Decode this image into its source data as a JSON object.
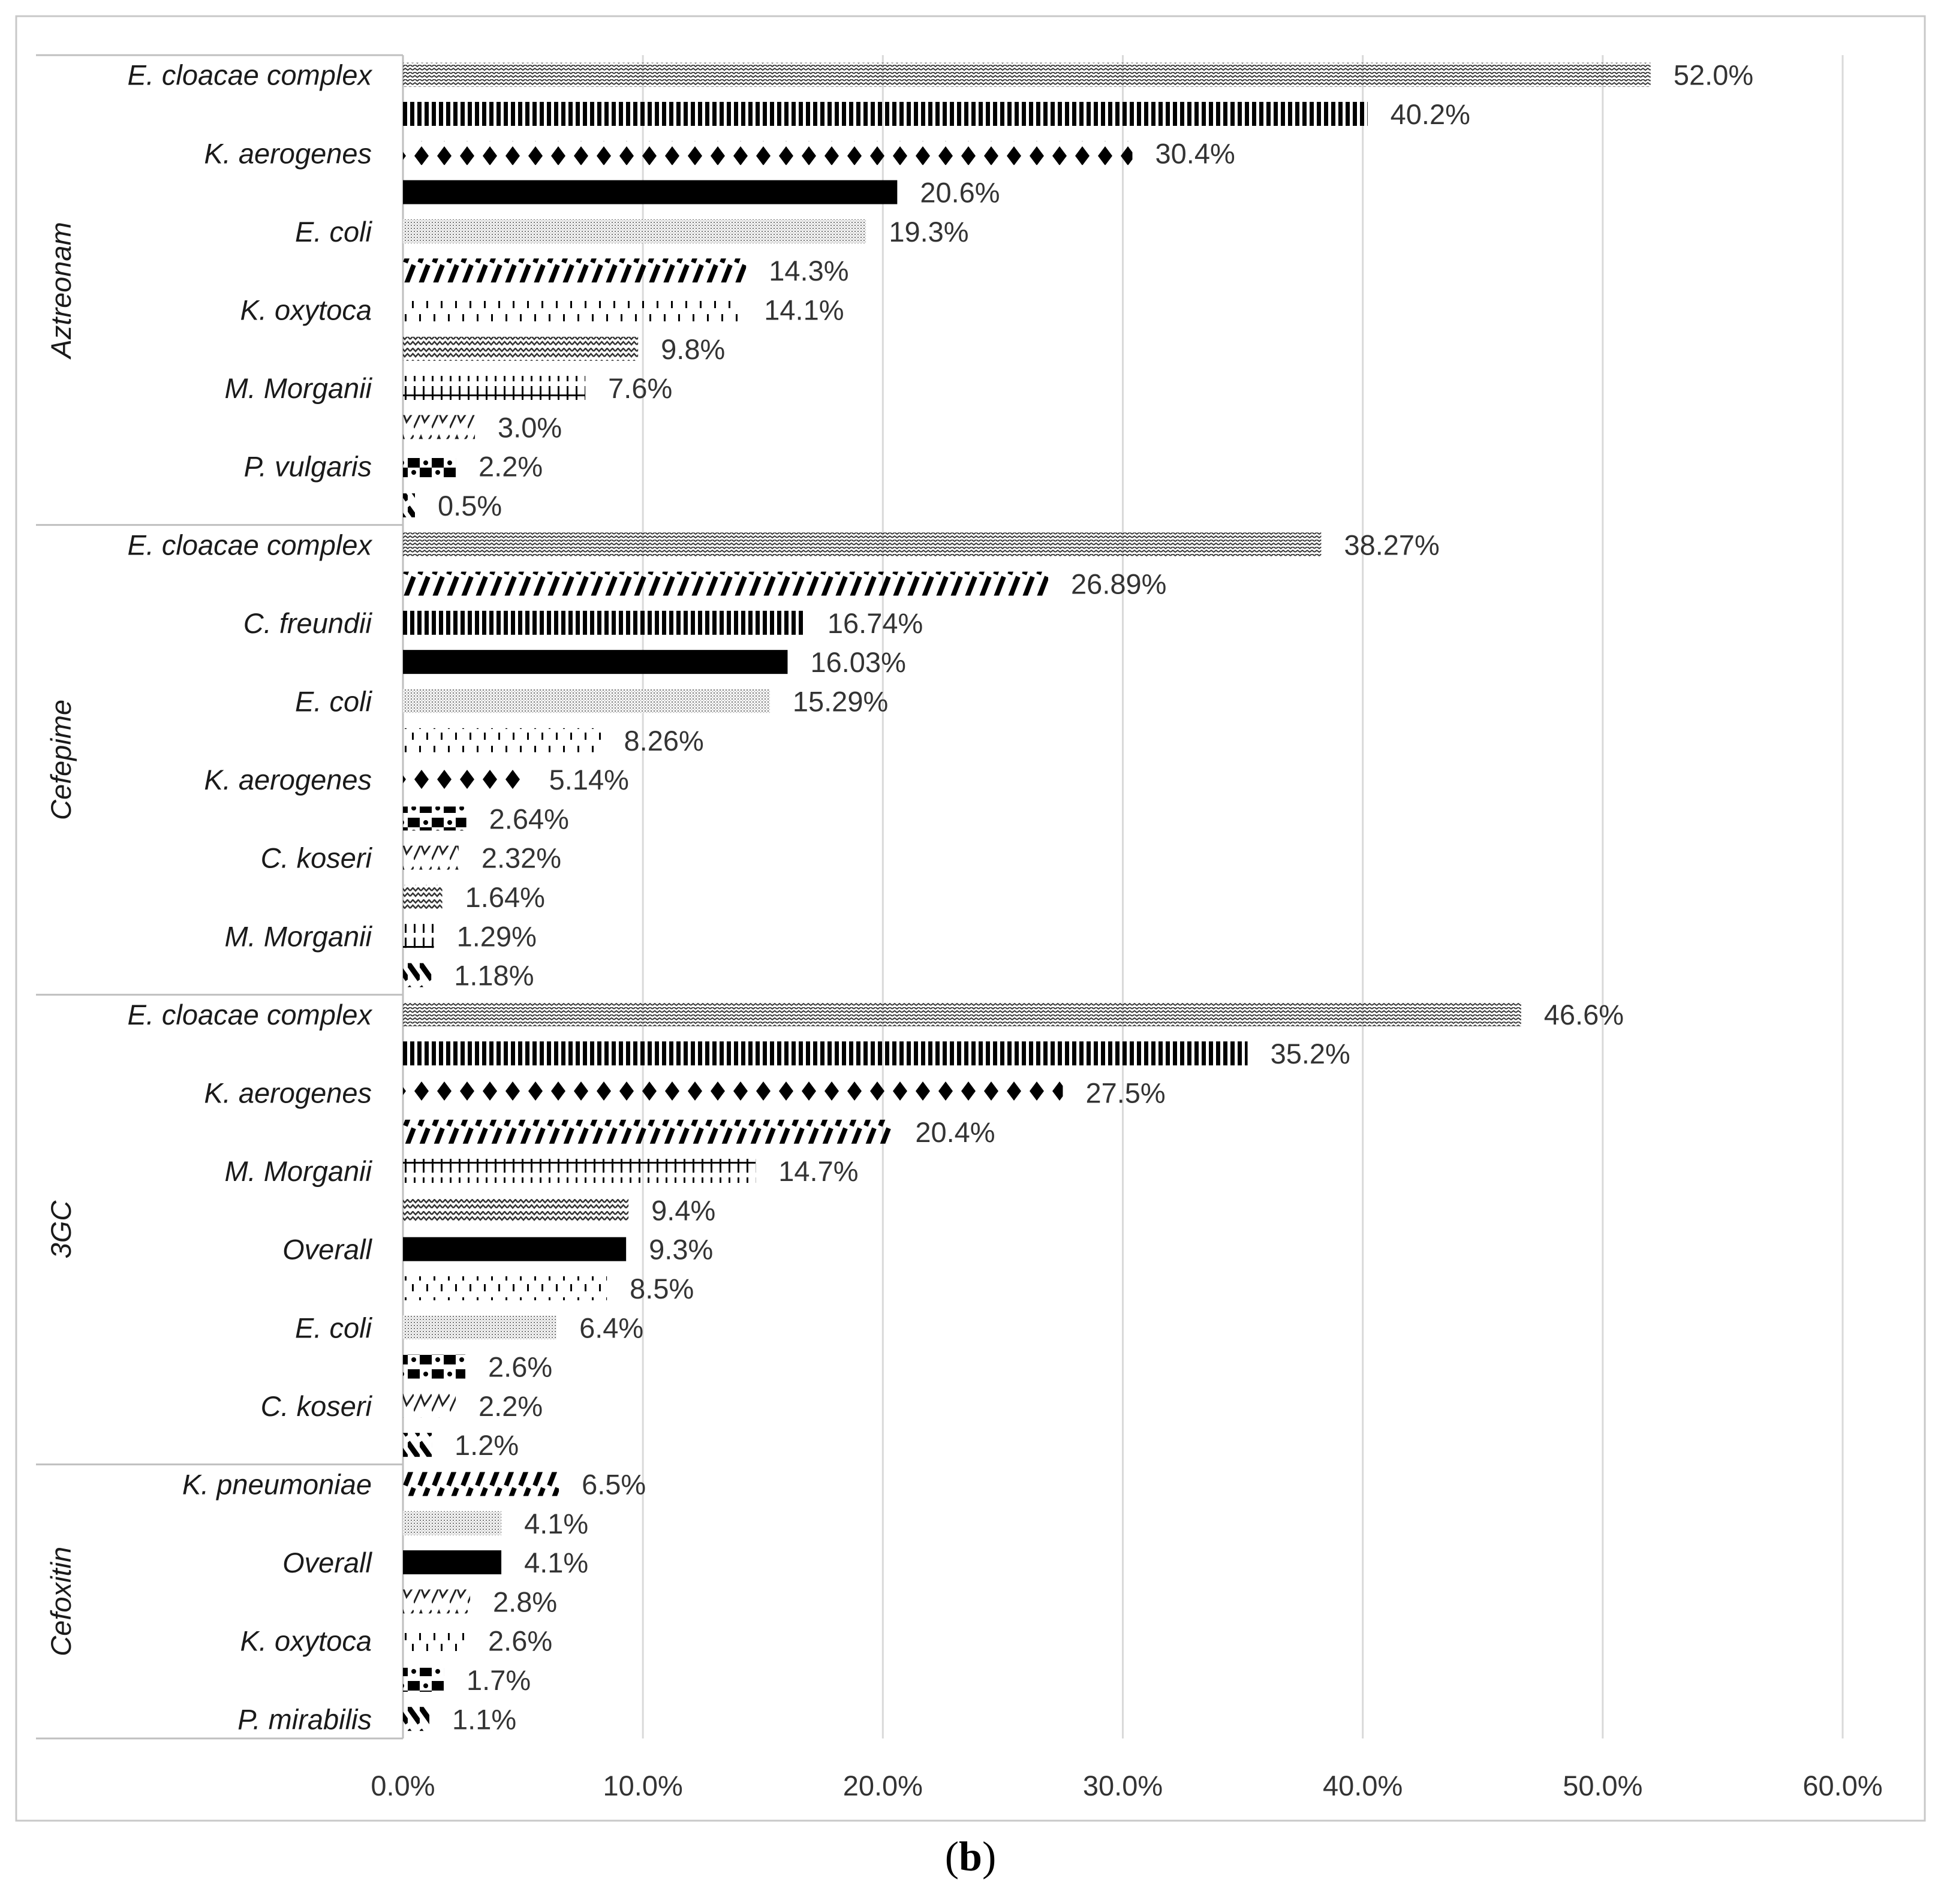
{
  "panel_caption": {
    "open": "(",
    "letter": "b",
    "close": ")"
  },
  "chart_data": {
    "type": "bar",
    "orientation": "horizontal",
    "xlim": [
      0,
      60
    ],
    "x_ticks": [
      "0.0%",
      "10.0%",
      "20.0%",
      "30.0%",
      "40.0%",
      "50.0%",
      "60.0%"
    ],
    "grid": true,
    "legend": "none",
    "groups": [
      {
        "name": "Aztreonam",
        "bars": [
          {
            "label": "E. cloacae complex",
            "value": 52.0,
            "text": "52.0%",
            "pattern": "zigzag-dense"
          },
          {
            "label": "",
            "value": 40.2,
            "text": "40.2%",
            "pattern": "vlines"
          },
          {
            "label": "K. aerogenes",
            "value": 30.4,
            "text": "30.4%",
            "pattern": "diamonds"
          },
          {
            "label": "",
            "value": 20.6,
            "text": "20.6%",
            "pattern": "solid"
          },
          {
            "label": "E. coli",
            "value": 19.3,
            "text": "19.3%",
            "pattern": "dots"
          },
          {
            "label": "",
            "value": 14.3,
            "text": "14.3%",
            "pattern": "diag"
          },
          {
            "label": "K. oxytoca",
            "value": 14.1,
            "text": "14.1%",
            "pattern": "dashes"
          },
          {
            "label": "",
            "value": 9.8,
            "text": "9.8%",
            "pattern": "zigzag"
          },
          {
            "label": "M. Morganii",
            "value": 7.6,
            "text": "7.6%",
            "pattern": "grid"
          },
          {
            "label": "",
            "value": 3.0,
            "text": "3.0%",
            "pattern": "wave"
          },
          {
            "label": "P. vulgaris",
            "value": 2.2,
            "text": "2.2%",
            "pattern": "checker"
          },
          {
            "label": "",
            "value": 0.5,
            "text": "0.5%",
            "pattern": "wdiag"
          }
        ]
      },
      {
        "name": "Cefepime",
        "bars": [
          {
            "label": "E. cloacae complex",
            "value": 38.27,
            "text": "38.27%",
            "pattern": "zigzag-dense"
          },
          {
            "label": "",
            "value": 26.89,
            "text": "26.89%",
            "pattern": "diag"
          },
          {
            "label": "C. freundii",
            "value": 16.74,
            "text": "16.74%",
            "pattern": "vlines"
          },
          {
            "label": "",
            "value": 16.03,
            "text": "16.03%",
            "pattern": "solid"
          },
          {
            "label": "E. coli",
            "value": 15.29,
            "text": "15.29%",
            "pattern": "dots"
          },
          {
            "label": "",
            "value": 8.26,
            "text": "8.26%",
            "pattern": "dashes"
          },
          {
            "label": "K. aerogenes",
            "value": 5.14,
            "text": "5.14%",
            "pattern": "diamonds"
          },
          {
            "label": "",
            "value": 2.64,
            "text": "2.64%",
            "pattern": "checker"
          },
          {
            "label": "C. koseri",
            "value": 2.32,
            "text": "2.32%",
            "pattern": "wave"
          },
          {
            "label": "",
            "value": 1.64,
            "text": "1.64%",
            "pattern": "zigzag"
          },
          {
            "label": "M. Morganii",
            "value": 1.29,
            "text": "1.29%",
            "pattern": "grid"
          },
          {
            "label": "",
            "value": 1.18,
            "text": "1.18%",
            "pattern": "wdiag"
          }
        ]
      },
      {
        "name": "3GC",
        "bars": [
          {
            "label": "E. cloacae complex",
            "value": 46.6,
            "text": "46.6%",
            "pattern": "zigzag-dense"
          },
          {
            "label": "",
            "value": 35.2,
            "text": "35.2%",
            "pattern": "vlines"
          },
          {
            "label": "K. aerogenes",
            "value": 27.5,
            "text": "27.5%",
            "pattern": "diamonds"
          },
          {
            "label": "",
            "value": 20.4,
            "text": "20.4%",
            "pattern": "diag"
          },
          {
            "label": "M. Morganii",
            "value": 14.7,
            "text": "14.7%",
            "pattern": "grid"
          },
          {
            "label": "",
            "value": 9.4,
            "text": "9.4%",
            "pattern": "zigzag"
          },
          {
            "label": "Overall",
            "value": 9.3,
            "text": "9.3%",
            "pattern": "solid"
          },
          {
            "label": "",
            "value": 8.5,
            "text": "8.5%",
            "pattern": "dashes"
          },
          {
            "label": "E. coli",
            "value": 6.4,
            "text": "6.4%",
            "pattern": "dots"
          },
          {
            "label": "",
            "value": 2.6,
            "text": "2.6%",
            "pattern": "checker"
          },
          {
            "label": "C. koseri",
            "value": 2.2,
            "text": "2.2%",
            "pattern": "wave"
          },
          {
            "label": "",
            "value": 1.2,
            "text": "1.2%",
            "pattern": "wdiag"
          }
        ]
      },
      {
        "name": "Cefoxitin",
        "bars": [
          {
            "label": "K. pneumoniae",
            "value": 6.5,
            "text": "6.5%",
            "pattern": "diag"
          },
          {
            "label": "",
            "value": 4.1,
            "text": "4.1%",
            "pattern": "dots"
          },
          {
            "label": "Overall",
            "value": 4.1,
            "text": "4.1%",
            "pattern": "solid"
          },
          {
            "label": "",
            "value": 2.8,
            "text": "2.8%",
            "pattern": "wave"
          },
          {
            "label": "K. oxytoca",
            "value": 2.6,
            "text": "2.6%",
            "pattern": "dashes"
          },
          {
            "label": "",
            "value": 1.7,
            "text": "1.7%",
            "pattern": "checker"
          },
          {
            "label": "P. mirabilis",
            "value": 1.1,
            "text": "1.1%",
            "pattern": "wdiag"
          }
        ]
      }
    ]
  }
}
